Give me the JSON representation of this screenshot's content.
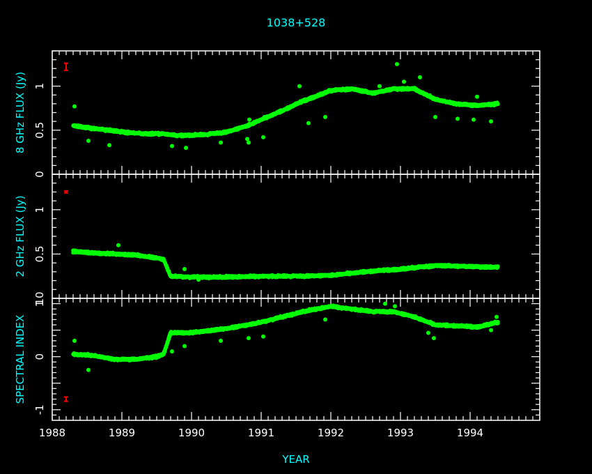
{
  "colors": {
    "background": "#000000",
    "axes": "#ffffff",
    "text": "#ffffff",
    "labels": "#00ffff",
    "data": "#00ff00",
    "error_bar": "#ff0000"
  },
  "chart_data": {
    "type": "scatter",
    "title": "1038+528",
    "xlabel": "YEAR",
    "xlim": [
      1988,
      1995
    ],
    "x_ticks": [
      "1988",
      "1989",
      "1990",
      "1991",
      "1992",
      "1993",
      "1994"
    ],
    "grid": false,
    "panels": [
      {
        "ylabel": "8 GHz FLUX (Jy)",
        "ylim": [
          0,
          1.4
        ],
        "y_ticks": [
          "0",
          "0.5",
          "1"
        ],
        "error_bar": {
          "x": 1988.2,
          "y": 1.22,
          "err": 0.04
        },
        "trend": [
          [
            1988.3,
            0.55
          ],
          [
            1988.6,
            0.52
          ],
          [
            1989.0,
            0.48
          ],
          [
            1989.3,
            0.46
          ],
          [
            1989.6,
            0.46
          ],
          [
            1989.8,
            0.44
          ],
          [
            1990.2,
            0.45
          ],
          [
            1990.5,
            0.48
          ],
          [
            1990.8,
            0.55
          ],
          [
            1991.0,
            0.62
          ],
          [
            1991.3,
            0.72
          ],
          [
            1991.6,
            0.83
          ],
          [
            1992.0,
            0.95
          ],
          [
            1992.3,
            0.97
          ],
          [
            1992.6,
            0.92
          ],
          [
            1992.9,
            0.97
          ],
          [
            1993.2,
            0.97
          ],
          [
            1993.5,
            0.85
          ],
          [
            1993.8,
            0.8
          ],
          [
            1994.1,
            0.78
          ],
          [
            1994.4,
            0.8
          ]
        ],
        "outliers": [
          [
            1988.32,
            0.77
          ],
          [
            1988.52,
            0.38
          ],
          [
            1988.82,
            0.33
          ],
          [
            1989.72,
            0.32
          ],
          [
            1989.92,
            0.3
          ],
          [
            1990.42,
            0.36
          ],
          [
            1990.8,
            0.4
          ],
          [
            1990.82,
            0.36
          ],
          [
            1990.83,
            0.62
          ],
          [
            1991.03,
            0.42
          ],
          [
            1991.55,
            1.0
          ],
          [
            1991.68,
            0.58
          ],
          [
            1991.92,
            0.65
          ],
          [
            1992.7,
            1.0
          ],
          [
            1992.95,
            1.25
          ],
          [
            1993.05,
            1.05
          ],
          [
            1993.28,
            1.1
          ],
          [
            1993.5,
            0.65
          ],
          [
            1993.82,
            0.63
          ],
          [
            1994.05,
            0.62
          ],
          [
            1994.1,
            0.88
          ],
          [
            1994.3,
            0.6
          ]
        ]
      },
      {
        "ylabel": "2 GHz FLUX (Jy)",
        "ylim": [
          0,
          1.4
        ],
        "y_ticks": [
          "0.5",
          "1"
        ],
        "error_bar": {
          "x": 1988.2,
          "y": 1.2,
          "err": 0.01
        },
        "trend": [
          [
            1988.3,
            0.53
          ],
          [
            1988.6,
            0.51
          ],
          [
            1988.9,
            0.5
          ],
          [
            1989.2,
            0.49
          ],
          [
            1989.45,
            0.46
          ],
          [
            1989.6,
            0.44
          ],
          [
            1989.7,
            0.25
          ],
          [
            1990.0,
            0.24
          ],
          [
            1990.5,
            0.24
          ],
          [
            1991.0,
            0.25
          ],
          [
            1991.5,
            0.25
          ],
          [
            1992.0,
            0.26
          ],
          [
            1992.5,
            0.3
          ],
          [
            1993.0,
            0.33
          ],
          [
            1993.5,
            0.37
          ],
          [
            1994.0,
            0.36
          ],
          [
            1994.4,
            0.35
          ]
        ],
        "outliers": [
          [
            1988.95,
            0.6
          ],
          [
            1989.9,
            0.33
          ],
          [
            1990.1,
            0.21
          ]
        ]
      },
      {
        "ylabel": "SPECTRAL INDEX",
        "ylim": [
          -1.2,
          1.1
        ],
        "y_ticks": [
          "-1",
          "0",
          "1"
        ],
        "y_ticks_at_panel_top": [
          [
            "10",
            1.1
          ]
        ],
        "error_bar": {
          "x": 1988.2,
          "y": -0.8,
          "err": 0.04
        },
        "trend": [
          [
            1988.3,
            0.05
          ],
          [
            1988.6,
            0.02
          ],
          [
            1988.9,
            -0.05
          ],
          [
            1989.2,
            -0.05
          ],
          [
            1989.5,
            0.0
          ],
          [
            1989.6,
            0.05
          ],
          [
            1989.7,
            0.45
          ],
          [
            1990.0,
            0.45
          ],
          [
            1990.3,
            0.5
          ],
          [
            1990.6,
            0.55
          ],
          [
            1990.8,
            0.6
          ],
          [
            1991.0,
            0.65
          ],
          [
            1991.3,
            0.75
          ],
          [
            1991.6,
            0.85
          ],
          [
            1992.0,
            0.95
          ],
          [
            1992.3,
            0.9
          ],
          [
            1992.6,
            0.85
          ],
          [
            1992.9,
            0.85
          ],
          [
            1993.2,
            0.75
          ],
          [
            1993.5,
            0.6
          ],
          [
            1993.8,
            0.58
          ],
          [
            1994.1,
            0.56
          ],
          [
            1994.4,
            0.65
          ]
        ],
        "outliers": [
          [
            1988.32,
            0.3
          ],
          [
            1988.52,
            -0.25
          ],
          [
            1989.72,
            0.1
          ],
          [
            1989.9,
            0.2
          ],
          [
            1990.42,
            0.3
          ],
          [
            1990.82,
            0.35
          ],
          [
            1991.03,
            0.38
          ],
          [
            1991.92,
            0.7
          ],
          [
            1992.78,
            1.0
          ],
          [
            1992.92,
            0.95
          ],
          [
            1993.4,
            0.45
          ],
          [
            1993.48,
            0.35
          ],
          [
            1994.3,
            0.5
          ],
          [
            1994.38,
            0.75
          ]
        ]
      }
    ]
  }
}
